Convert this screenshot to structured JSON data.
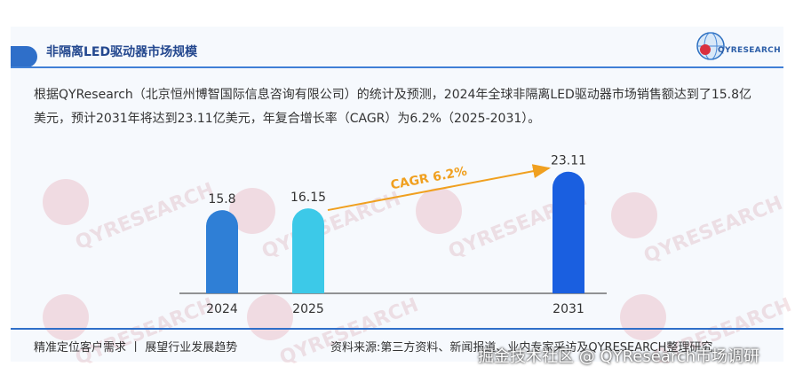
{
  "header": {
    "title": "非隔离LED驱动器市场规模",
    "logo_text": "QYRESEARCH"
  },
  "description": "根据QYResearch（北京恒州博智国际信息咨询有限公司）的统计及预测，2024年全球非隔离LED驱动器市场销售额达到了15.8亿美元，预计2031年将达到23.11亿美元，年复合增长率（CAGR）为6.2%（2025-2031）。",
  "watermark_text": "QYRESEARCH",
  "chart_data": {
    "type": "bar",
    "title": "",
    "xlabel": "",
    "ylabel": "",
    "categories": [
      "2024",
      "2025",
      "2031"
    ],
    "values": [
      15.8,
      16.15,
      23.11
    ],
    "value_labels": [
      "15.8",
      "16.15",
      "23.11"
    ],
    "colors": [
      "#2f7fd6",
      "#3cc9e8",
      "#1a5fe0"
    ],
    "annotation": {
      "text": "CAGR 6.2%",
      "from": "2025",
      "to": "2031",
      "color": "#f0a020"
    },
    "grid": false
  },
  "footer": {
    "left": "精准定位客户需求 丨 展望行业发展趋势",
    "right": "资料来源:第三方资料、新闻报道、业内专家采访及QYRESEARCH整理研究"
  },
  "overlay_caption": "掘金技术社区 @ QYResearch市场调研"
}
